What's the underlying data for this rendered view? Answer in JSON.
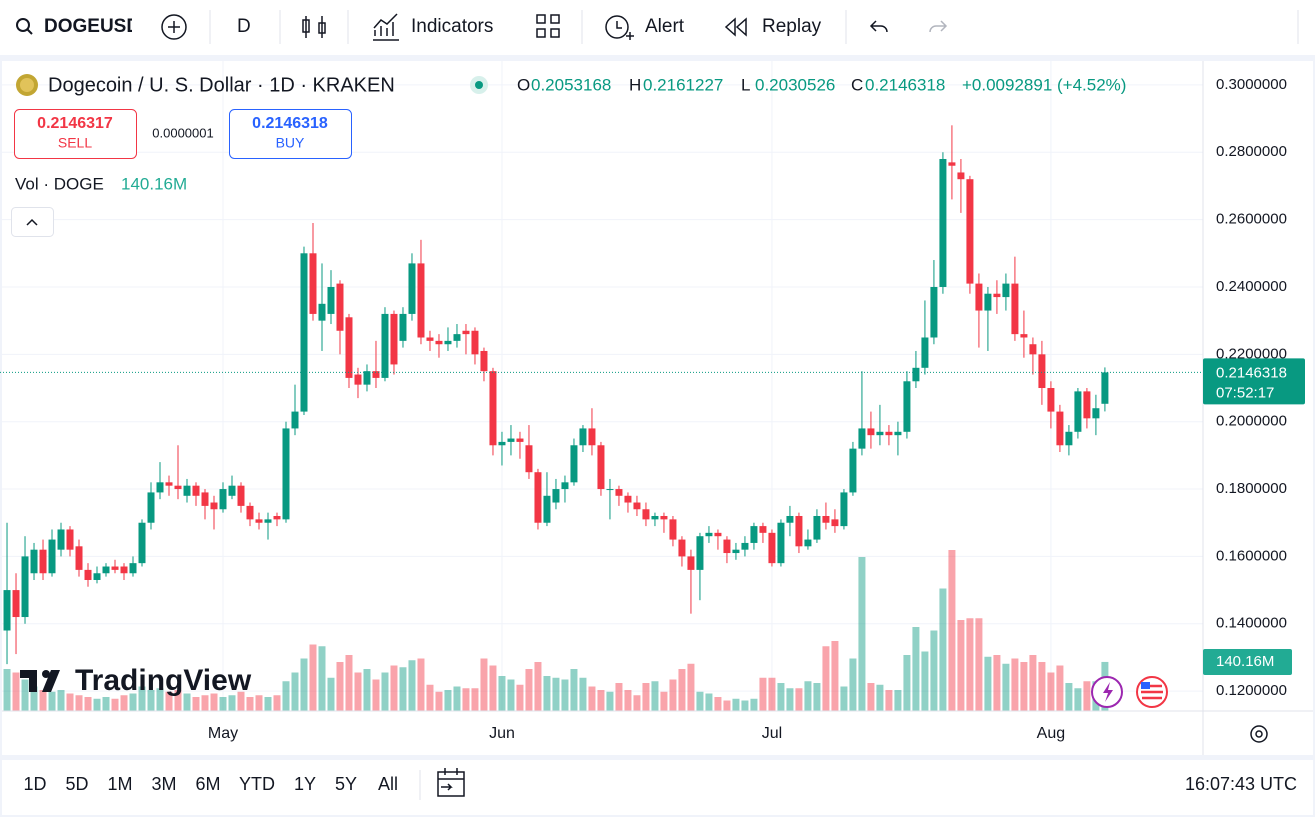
{
  "toolbar": {
    "symbol": "DOGEUSD",
    "interval": "D",
    "indicators": "Indicators",
    "alert": "Alert",
    "replay": "Replay"
  },
  "legend": {
    "ohlc_letters": [
      "O",
      "H",
      "L",
      "C"
    ],
    "change": "+0.0092891 (+4.52%)"
  },
  "trade": {
    "sell_price": 0.2146317,
    "sell": "SELL",
    "spread": "0.0000001",
    "buy_price": 0.2146318,
    "buy": "BUY"
  },
  "watermark": "TradingView",
  "bottom_bar": {
    "ranges": [
      "1D",
      "5D",
      "1M",
      "3M",
      "6M",
      "YTD",
      "1Y",
      "5Y",
      "All"
    ],
    "clock": "16:07:43 UTC"
  },
  "chart_data": {
    "type": "candlestick",
    "title": "Dogecoin / U. S. Dollar · 1D · KRAKEN",
    "up_color": "#089981",
    "down_color": "#f23645",
    "grid": true,
    "open": [
      0.138,
      0.15,
      0.142,
      0.155,
      0.162,
      0.155,
      0.162,
      0.168,
      0.163,
      0.156,
      0.153,
      0.155,
      0.157,
      0.157,
      0.155,
      0.158,
      0.17,
      0.179,
      0.182,
      0.181,
      0.178,
      0.181,
      0.179,
      0.176,
      0.174,
      0.178,
      0.181,
      0.175,
      0.171,
      0.17,
      0.172,
      0.171,
      0.198,
      0.203,
      0.25,
      0.23,
      0.232,
      0.241,
      0.231,
      0.214,
      0.211,
      0.215,
      0.213,
      0.232,
      0.224,
      0.232,
      0.247,
      0.225,
      0.224,
      0.223,
      0.224,
      0.227,
      0.227,
      0.221,
      0.215,
      0.193,
      0.194,
      0.195,
      0.193,
      0.185,
      0.17,
      0.176,
      0.18,
      0.182,
      0.193,
      0.198,
      0.193,
      0.18,
      0.18,
      0.178,
      0.176,
      0.174,
      0.171,
      0.172,
      0.171,
      0.165,
      0.16,
      0.156,
      0.166,
      0.167,
      0.165,
      0.161,
      0.162,
      0.164,
      0.169,
      0.167,
      0.158,
      0.17,
      0.172,
      0.163,
      0.165,
      0.172,
      0.171,
      0.169,
      0.179,
      0.192,
      0.198,
      0.196,
      0.197,
      0.196,
      0.197,
      0.212,
      0.216,
      0.225,
      0.24,
      0.277,
      0.274,
      0.272,
      0.241,
      0.233,
      0.238,
      0.237,
      0.241,
      0.226,
      0.223,
      0.22,
      0.21,
      0.203,
      0.193,
      0.197,
      0.209,
      0.201,
      0.2053168
    ],
    "high": [
      0.17,
      0.155,
      0.166,
      0.164,
      0.165,
      0.168,
      0.17,
      0.169,
      0.165,
      0.158,
      0.157,
      0.158,
      0.159,
      0.158,
      0.16,
      0.171,
      0.182,
      0.188,
      0.184,
      0.193,
      0.183,
      0.182,
      0.18,
      0.178,
      0.182,
      0.184,
      0.182,
      0.176,
      0.173,
      0.173,
      0.173,
      0.2,
      0.211,
      0.252,
      0.259,
      0.247,
      0.245,
      0.242,
      0.232,
      0.216,
      0.217,
      0.224,
      0.234,
      0.233,
      0.234,
      0.25,
      0.254,
      0.227,
      0.226,
      0.228,
      0.229,
      0.229,
      0.228,
      0.222,
      0.216,
      0.197,
      0.199,
      0.197,
      0.199,
      0.186,
      0.185,
      0.183,
      0.184,
      0.195,
      0.199,
      0.204,
      0.194,
      0.183,
      0.181,
      0.179,
      0.178,
      0.176,
      0.173,
      0.173,
      0.172,
      0.166,
      0.162,
      0.167,
      0.169,
      0.168,
      0.166,
      0.164,
      0.166,
      0.17,
      0.17,
      0.168,
      0.171,
      0.175,
      0.173,
      0.168,
      0.174,
      0.176,
      0.174,
      0.18,
      0.194,
      0.215,
      0.203,
      0.205,
      0.199,
      0.2,
      0.215,
      0.221,
      0.236,
      0.248,
      0.28,
      0.288,
      0.278,
      0.273,
      0.244,
      0.24,
      0.242,
      0.244,
      0.249,
      0.233,
      0.225,
      0.224,
      0.212,
      0.205,
      0.199,
      0.21,
      0.21,
      0.208,
      0.2161227
    ],
    "low": [
      0.128,
      0.131,
      0.14,
      0.153,
      0.153,
      0.154,
      0.16,
      0.16,
      0.154,
      0.151,
      0.152,
      0.154,
      0.155,
      0.153,
      0.154,
      0.157,
      0.168,
      0.177,
      0.178,
      0.177,
      0.176,
      0.175,
      0.171,
      0.168,
      0.173,
      0.177,
      0.173,
      0.169,
      0.168,
      0.165,
      0.169,
      0.17,
      0.196,
      0.202,
      0.23,
      0.221,
      0.229,
      0.22,
      0.21,
      0.207,
      0.209,
      0.21,
      0.212,
      0.214,
      0.222,
      0.23,
      0.223,
      0.221,
      0.219,
      0.221,
      0.222,
      0.22,
      0.217,
      0.212,
      0.19,
      0.187,
      0.19,
      0.189,
      0.183,
      0.168,
      0.169,
      0.174,
      0.176,
      0.181,
      0.191,
      0.19,
      0.178,
      0.171,
      0.175,
      0.173,
      0.172,
      0.169,
      0.169,
      0.167,
      0.163,
      0.157,
      0.143,
      0.147,
      0.164,
      0.162,
      0.158,
      0.159,
      0.16,
      0.162,
      0.164,
      0.157,
      0.157,
      0.166,
      0.161,
      0.162,
      0.164,
      0.168,
      0.167,
      0.168,
      0.178,
      0.19,
      0.192,
      0.193,
      0.193,
      0.19,
      0.195,
      0.21,
      0.214,
      0.223,
      0.238,
      0.266,
      0.262,
      0.238,
      0.222,
      0.221,
      0.232,
      0.233,
      0.224,
      0.219,
      0.214,
      0.205,
      0.198,
      0.191,
      0.19,
      0.195,
      0.198,
      0.196,
      0.2030526
    ],
    "close": [
      0.15,
      0.142,
      0.16,
      0.162,
      0.155,
      0.165,
      0.168,
      0.162,
      0.156,
      0.153,
      0.155,
      0.157,
      0.156,
      0.155,
      0.158,
      0.17,
      0.179,
      0.182,
      0.181,
      0.18,
      0.181,
      0.178,
      0.175,
      0.174,
      0.18,
      0.181,
      0.175,
      0.171,
      0.17,
      0.171,
      0.171,
      0.198,
      0.203,
      0.25,
      0.232,
      0.235,
      0.24,
      0.227,
      0.213,
      0.211,
      0.215,
      0.213,
      0.232,
      0.217,
      0.232,
      0.247,
      0.225,
      0.224,
      0.223,
      0.224,
      0.226,
      0.226,
      0.22,
      0.215,
      0.193,
      0.194,
      0.195,
      0.194,
      0.185,
      0.17,
      0.178,
      0.18,
      0.182,
      0.193,
      0.198,
      0.193,
      0.18,
      0.18,
      0.178,
      0.176,
      0.174,
      0.171,
      0.172,
      0.171,
      0.165,
      0.16,
      0.156,
      0.166,
      0.167,
      0.166,
      0.161,
      0.162,
      0.164,
      0.169,
      0.167,
      0.158,
      0.17,
      0.172,
      0.163,
      0.165,
      0.172,
      0.17,
      0.169,
      0.179,
      0.192,
      0.198,
      0.196,
      0.197,
      0.196,
      0.197,
      0.212,
      0.216,
      0.225,
      0.24,
      0.278,
      0.276,
      0.272,
      0.241,
      0.233,
      0.238,
      0.237,
      0.241,
      0.226,
      0.225,
      0.22,
      0.21,
      0.203,
      0.193,
      0.197,
      0.209,
      0.201,
      0.204,
      0.2146318
    ],
    "countdown": "07:52:17",
    "ylim": [
      0.1141,
      0.3068
    ],
    "yticks": [
      {
        "value": 0.12,
        "label": "0.1200000"
      },
      {
        "value": 0.14,
        "label": "0.1400000"
      },
      {
        "value": 0.16,
        "label": "0.1600000"
      },
      {
        "value": 0.18,
        "label": "0.1800000"
      },
      {
        "value": 0.2,
        "label": "0.2000000"
      },
      {
        "value": 0.22,
        "label": "0.2200000"
      },
      {
        "value": 0.24,
        "label": "0.2400000"
      },
      {
        "value": 0.26,
        "label": "0.2600000"
      },
      {
        "value": 0.28,
        "label": "0.2800000"
      },
      {
        "value": 0.3,
        "label": "0.3000000"
      }
    ],
    "xlim": [
      -0.78,
      132.9
    ],
    "xticks": [
      {
        "value": 24,
        "label": "May"
      },
      {
        "value": 55,
        "label": "Jun"
      },
      {
        "value": 85,
        "label": "Jul"
      },
      {
        "value": 116,
        "label": "Aug"
      }
    ],
    "volume": {
      "name": "Vol · DOGE",
      "last_label": "140.16M",
      "values": [
        120,
        110,
        90,
        70,
        60,
        55,
        60,
        50,
        45,
        40,
        35,
        40,
        35,
        45,
        50,
        70,
        60,
        65,
        55,
        60,
        50,
        40,
        45,
        50,
        40,
        45,
        55,
        40,
        45,
        40,
        45,
        85,
        110,
        150,
        190,
        185,
        95,
        140,
        160,
        110,
        120,
        90,
        110,
        130,
        125,
        145,
        150,
        75,
        55,
        60,
        70,
        65,
        65,
        150,
        130,
        100,
        90,
        75,
        120,
        140,
        100,
        95,
        90,
        120,
        95,
        70,
        60,
        55,
        80,
        60,
        45,
        80,
        85,
        55,
        90,
        120,
        135,
        55,
        50,
        40,
        30,
        35,
        30,
        35,
        95,
        95,
        80,
        65,
        65,
        85,
        80,
        185,
        200,
        70,
        150,
        440,
        80,
        75,
        60,
        60,
        160,
        240,
        170,
        230,
        350,
        460,
        260,
        265,
        265,
        155,
        160,
        135,
        150,
        140,
        160,
        140,
        110,
        130,
        80,
        65,
        85,
        85,
        140.16
      ]
    }
  }
}
